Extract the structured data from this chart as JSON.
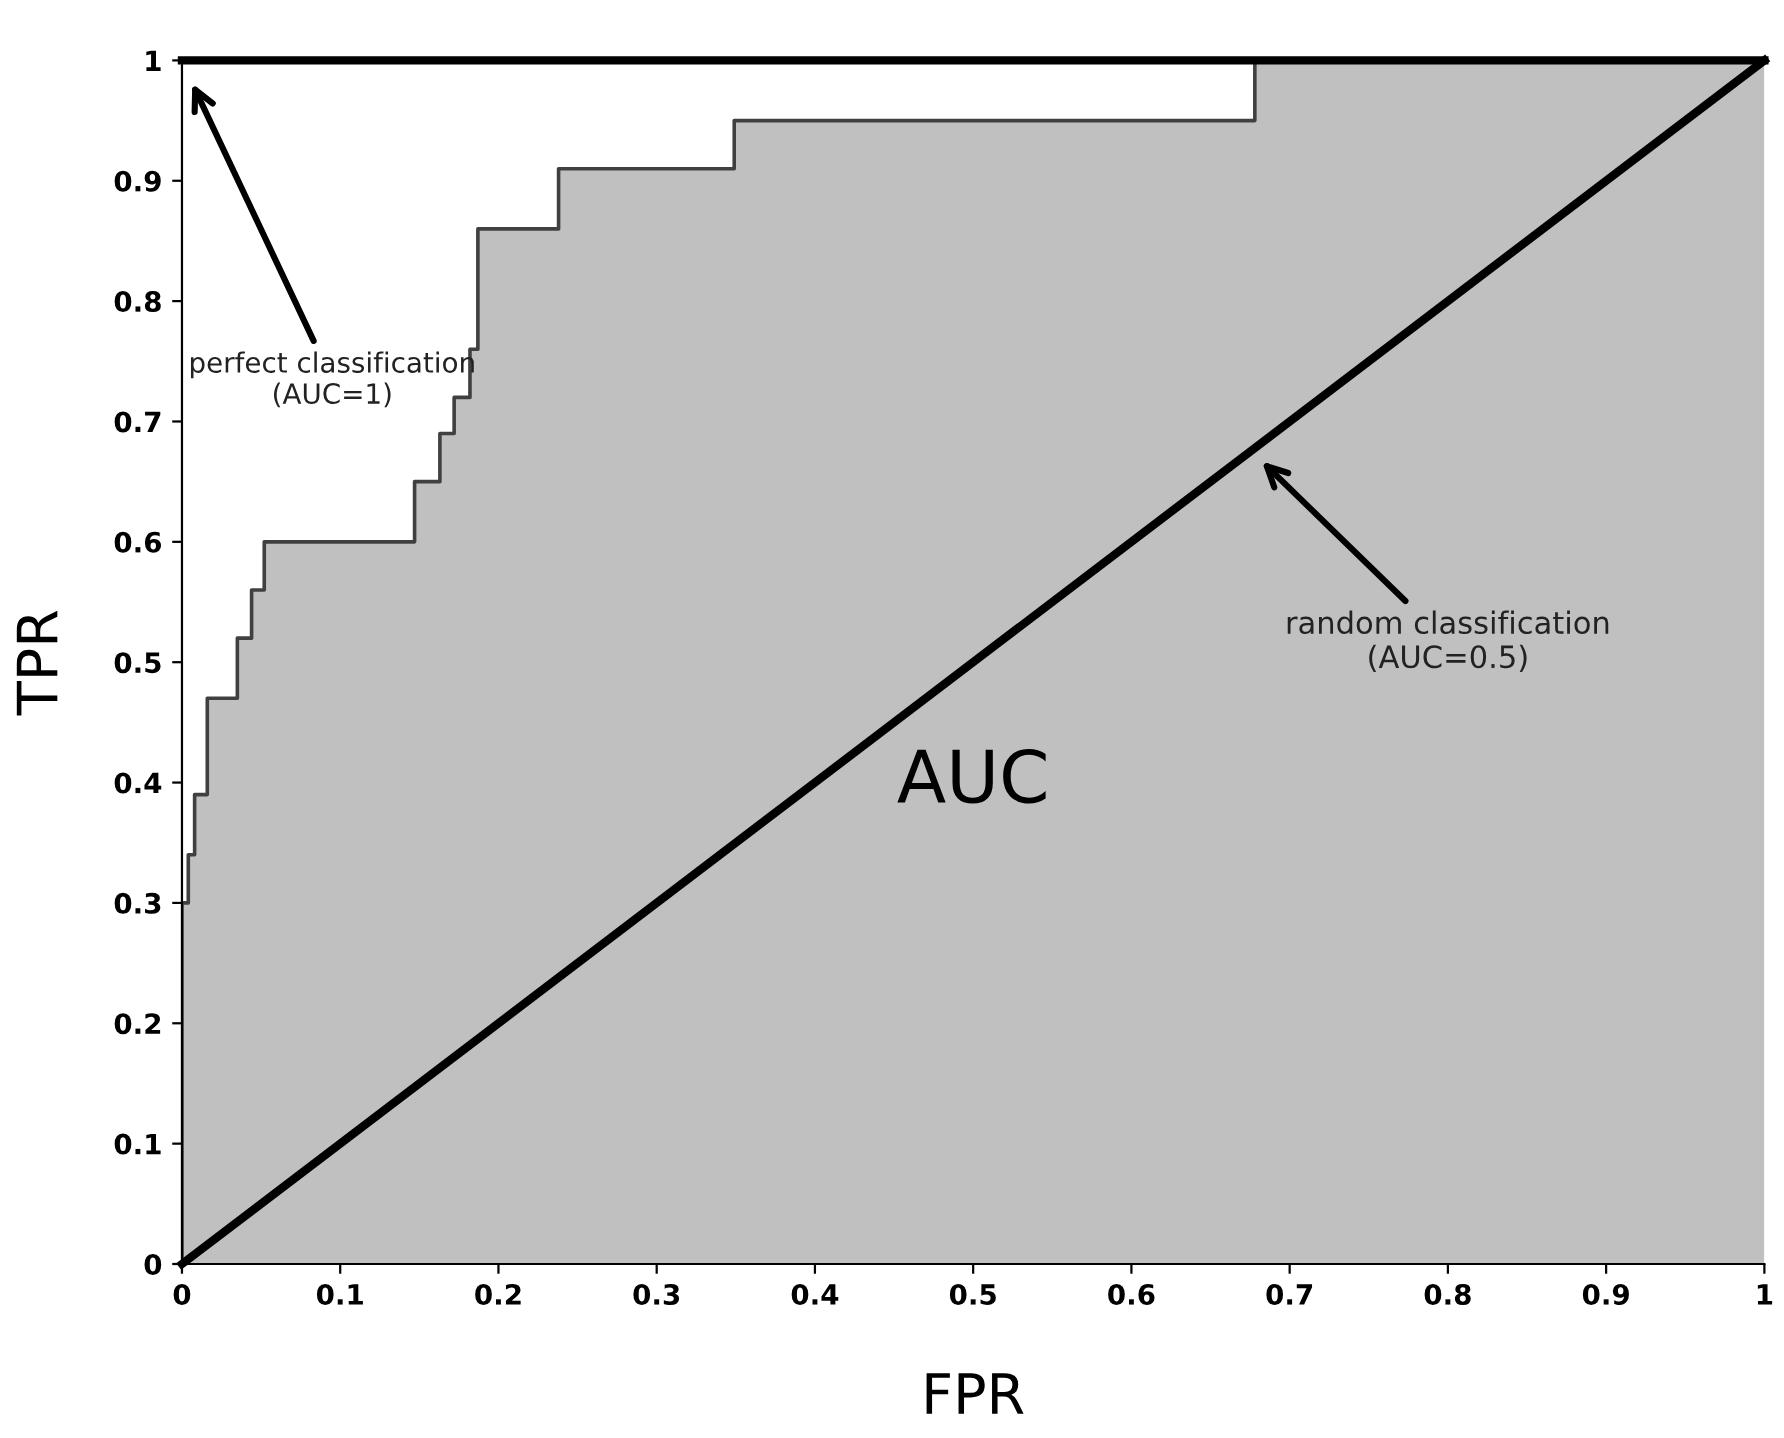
{
  "chart_data": {
    "type": "line",
    "xlabel": "FPR",
    "ylabel": "TPR",
    "xlim": [
      0,
      1
    ],
    "ylim": [
      0,
      1
    ],
    "xticks": [
      0,
      0.1,
      0.2,
      0.3,
      0.4,
      0.5,
      0.6,
      0.7,
      0.8,
      0.9,
      1
    ],
    "yticks": [
      0,
      0.1,
      0.2,
      0.3,
      0.4,
      0.5,
      0.6,
      0.7,
      0.8,
      0.9,
      1
    ],
    "grid": false,
    "legend": false,
    "marker": "none",
    "line_style": "solid",
    "series": [
      {
        "type": "step",
        "color": "#404040",
        "x": [
          0,
          0,
          0.004,
          0.008,
          0.016,
          0.035,
          0.044,
          0.052,
          0.147,
          0.163,
          0.172,
          0.182,
          0.187,
          0.238,
          0.349,
          0.678,
          1
        ],
        "values": [
          0,
          0.3,
          0.34,
          0.39,
          0.47,
          0.52,
          0.56,
          0.6,
          0.65,
          0.69,
          0.72,
          0.76,
          0.86,
          0.91,
          0.95,
          1,
          1
        ]
      },
      {
        "color": "#000000",
        "x": [
          0,
          1
        ],
        "values": [
          1,
          1
        ]
      },
      {
        "color": "#000000",
        "x": [
          0,
          1
        ],
        "values": [
          0,
          1
        ]
      }
    ],
    "annotations": [
      "perfect classification\n(AUC=1)",
      "random classification\n(AUC=0.5)",
      "AUC"
    ]
  }
}
